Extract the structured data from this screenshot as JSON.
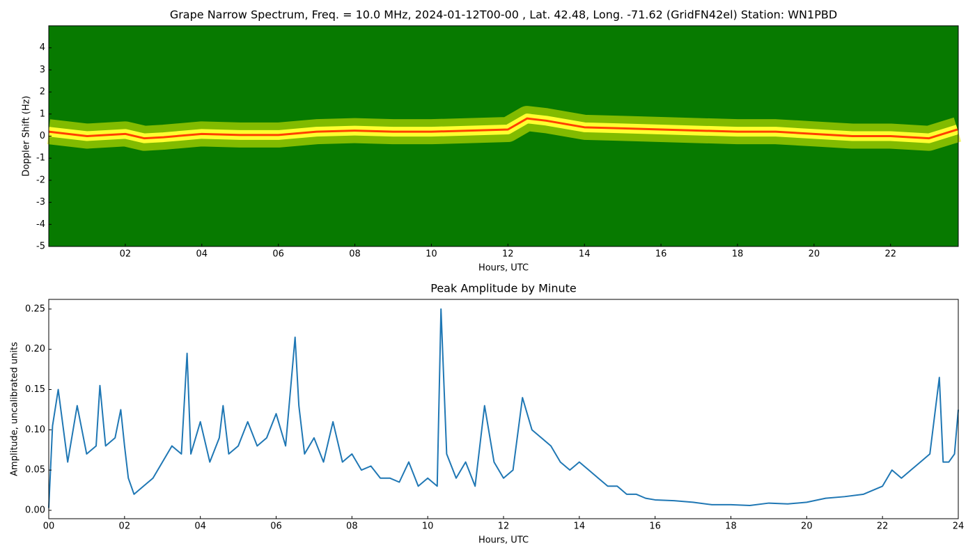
{
  "chart_data": [
    {
      "type": "spectrogram",
      "title": "Grape Narrow Spectrum, Freq. = 10.0 MHz, 2024-01-12T00-00 , Lat.  42.48, Long. -71.62 (GridFN42el) Station: WN1PBD",
      "xlabel": "Hours, UTC",
      "ylabel": "Doppler Shift (Hz)",
      "background_color": "#077a00",
      "x": [
        0,
        1,
        2,
        2.5,
        3,
        4,
        5,
        6,
        7,
        8,
        9,
        10,
        11,
        12,
        12.5,
        13,
        14,
        15,
        16,
        17,
        18,
        19,
        20,
        21,
        22,
        23,
        23.75
      ],
      "series": [
        {
          "color": "#ff4000",
          "values": [
            0.2,
            0,
            0.1,
            -0.1,
            -0.05,
            0.1,
            0.05,
            0.05,
            0.2,
            0.25,
            0.2,
            0.2,
            0.25,
            0.3,
            0.8,
            0.7,
            0.4,
            0.35,
            0.3,
            0.25,
            0.2,
            0.2,
            0.1,
            0,
            0,
            -0.1,
            0.3
          ]
        }
      ],
      "xlim": [
        0,
        23.77
      ],
      "ylim": [
        -5,
        5
      ],
      "xticks": [
        {
          "value": 2,
          "label": "02"
        },
        {
          "value": 4,
          "label": "04"
        },
        {
          "value": 6,
          "label": "06"
        },
        {
          "value": 8,
          "label": "08"
        },
        {
          "value": 10,
          "label": "10"
        },
        {
          "value": 12,
          "label": "12"
        },
        {
          "value": 14,
          "label": "14"
        },
        {
          "value": 16,
          "label": "16"
        },
        {
          "value": 18,
          "label": "18"
        },
        {
          "value": 20,
          "label": "20"
        },
        {
          "value": 22,
          "label": "22"
        }
      ],
      "yticks": [
        -5,
        -4,
        -3,
        -2,
        -1,
        0,
        1,
        2,
        3,
        4
      ]
    },
    {
      "type": "line",
      "title": "Peak Amplitude by Minute",
      "xlabel": "Hours, UTC",
      "ylabel": "Amplitude, uncalibrated units",
      "x": [
        0,
        0.1,
        0.25,
        0.5,
        0.75,
        1,
        1.25,
        1.35,
        1.5,
        1.75,
        1.9,
        2,
        2.1,
        2.25,
        2.5,
        2.75,
        3,
        3.25,
        3.5,
        3.65,
        3.75,
        4,
        4.25,
        4.5,
        4.6,
        4.75,
        5,
        5.25,
        5.5,
        5.75,
        6,
        6.25,
        6.5,
        6.6,
        6.75,
        7,
        7.25,
        7.5,
        7.75,
        8,
        8.25,
        8.5,
        8.75,
        9,
        9.25,
        9.5,
        9.75,
        10,
        10.25,
        10.35,
        10.5,
        10.75,
        11,
        11.25,
        11.5,
        11.75,
        12,
        12.25,
        12.5,
        12.75,
        13,
        13.25,
        13.5,
        13.75,
        14,
        14.25,
        14.5,
        14.75,
        15,
        15.25,
        15.5,
        15.75,
        16,
        16.5,
        17,
        17.5,
        18,
        18.5,
        19,
        19.5,
        20,
        20.5,
        21,
        21.5,
        22,
        22.25,
        22.5,
        22.75,
        23,
        23.25,
        23.5,
        23.6,
        23.75,
        23.9,
        24
      ],
      "series": [
        {
          "color": "#1f77b4",
          "values": [
            0.003,
            0.105,
            0.15,
            0.06,
            0.13,
            0.07,
            0.08,
            0.155,
            0.08,
            0.09,
            0.125,
            0.08,
            0.04,
            0.02,
            0.03,
            0.04,
            0.06,
            0.08,
            0.07,
            0.195,
            0.07,
            0.11,
            0.06,
            0.09,
            0.13,
            0.07,
            0.08,
            0.11,
            0.08,
            0.09,
            0.12,
            0.08,
            0.215,
            0.13,
            0.07,
            0.09,
            0.06,
            0.11,
            0.06,
            0.07,
            0.05,
            0.055,
            0.04,
            0.04,
            0.035,
            0.06,
            0.03,
            0.04,
            0.03,
            0.25,
            0.07,
            0.04,
            0.06,
            0.03,
            0.13,
            0.06,
            0.04,
            0.05,
            0.14,
            0.1,
            0.09,
            0.08,
            0.06,
            0.05,
            0.06,
            0.05,
            0.04,
            0.03,
            0.03,
            0.02,
            0.02,
            0.015,
            0.013,
            0.012,
            0.01,
            0.007,
            0.007,
            0.006,
            0.009,
            0.008,
            0.01,
            0.015,
            0.017,
            0.02,
            0.03,
            0.05,
            0.04,
            0.05,
            0.06,
            0.07,
            0.165,
            0.06,
            0.06,
            0.07,
            0.125
          ]
        }
      ],
      "xlim": [
        0,
        24
      ],
      "ylim": [
        -0.0104,
        0.262
      ],
      "xticks": [
        {
          "value": 0,
          "label": "00"
        },
        {
          "value": 2,
          "label": "02"
        },
        {
          "value": 4,
          "label": "04"
        },
        {
          "value": 6,
          "label": "06"
        },
        {
          "value": 8,
          "label": "08"
        },
        {
          "value": 10,
          "label": "10"
        },
        {
          "value": 12,
          "label": "12"
        },
        {
          "value": 14,
          "label": "14"
        },
        {
          "value": 16,
          "label": "16"
        },
        {
          "value": 18,
          "label": "18"
        },
        {
          "value": 20,
          "label": "20"
        },
        {
          "value": 22,
          "label": "22"
        },
        {
          "value": 24,
          "label": "24"
        }
      ],
      "yticks": [
        {
          "value": 0,
          "label": "0.00"
        },
        {
          "value": 0.05,
          "label": "0.05"
        },
        {
          "value": 0.1,
          "label": "0.10"
        },
        {
          "value": 0.15,
          "label": "0.15"
        },
        {
          "value": 0.2,
          "label": "0.20"
        },
        {
          "value": 0.25,
          "label": "0.25"
        }
      ]
    }
  ]
}
